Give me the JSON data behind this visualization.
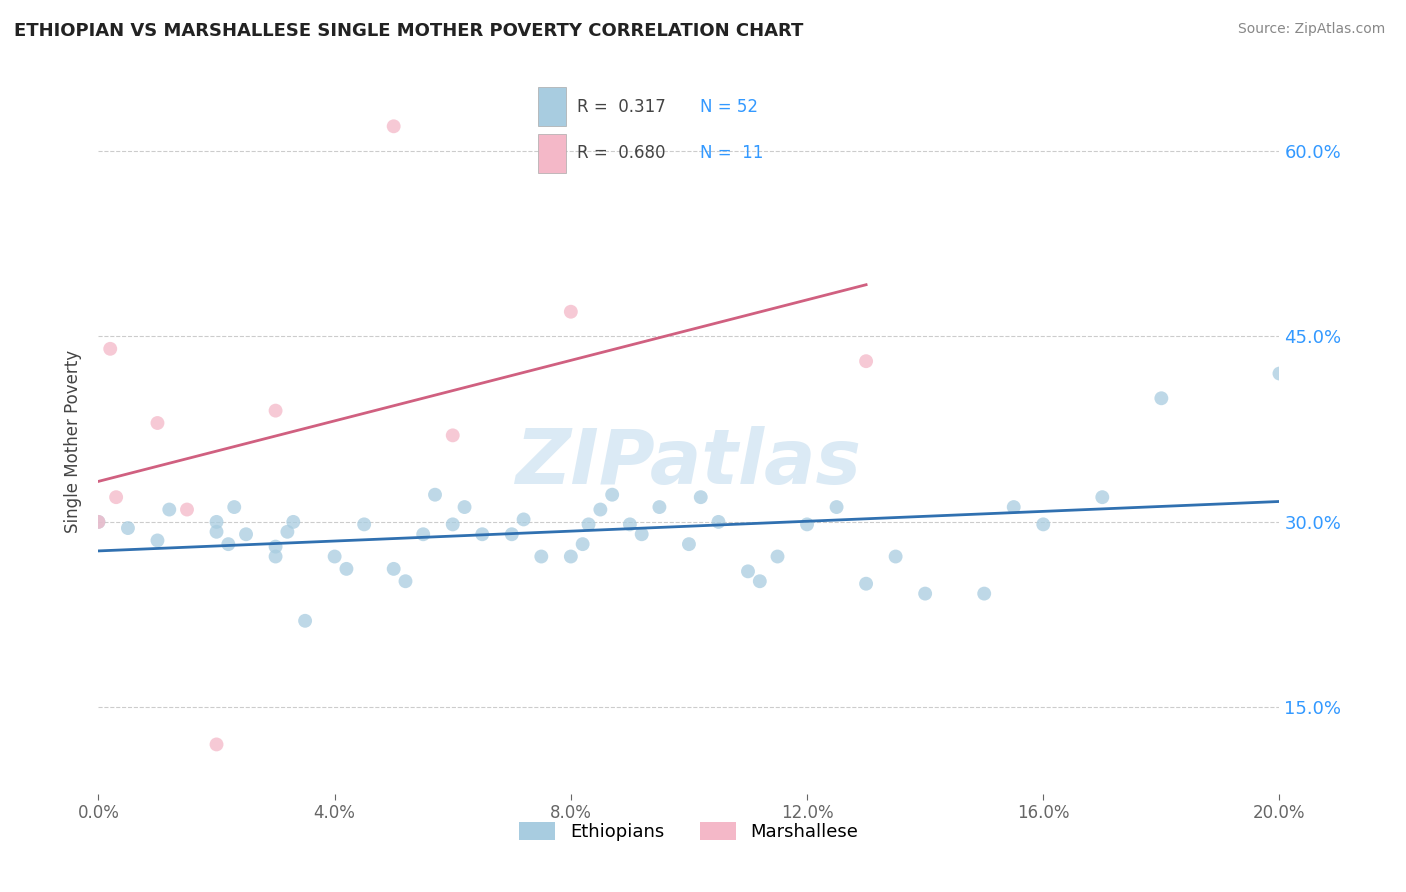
{
  "title": "ETHIOPIAN VS MARSHALLESE SINGLE MOTHER POVERTY CORRELATION CHART",
  "source": "Source: ZipAtlas.com",
  "ylabel": "Single Mother Poverty",
  "xlim": [
    0.0,
    0.2
  ],
  "ylim": [
    0.08,
    0.65
  ],
  "yticks": [
    0.15,
    0.3,
    0.45,
    0.6
  ],
  "xticks": [
    0.0,
    0.04,
    0.08,
    0.12,
    0.16,
    0.2
  ],
  "watermark": "ZIPatlas",
  "blue_r": 0.317,
  "blue_n": 52,
  "pink_r": 0.68,
  "pink_n": 11,
  "blue_color": "#a8cce0",
  "pink_color": "#f4b8c8",
  "blue_line_color": "#3070b0",
  "pink_line_color": "#d06080",
  "scatter_alpha": 0.75,
  "scatter_size": 100,
  "ethiopian_x": [
    0.0,
    0.005,
    0.01,
    0.012,
    0.02,
    0.02,
    0.022,
    0.023,
    0.025,
    0.03,
    0.03,
    0.032,
    0.033,
    0.035,
    0.04,
    0.042,
    0.045,
    0.05,
    0.052,
    0.055,
    0.057,
    0.06,
    0.062,
    0.065,
    0.07,
    0.072,
    0.075,
    0.08,
    0.082,
    0.083,
    0.085,
    0.087,
    0.09,
    0.092,
    0.095,
    0.1,
    0.102,
    0.105,
    0.11,
    0.112,
    0.115,
    0.12,
    0.125,
    0.13,
    0.135,
    0.14,
    0.15,
    0.155,
    0.16,
    0.17,
    0.18,
    0.2
  ],
  "ethiopian_y": [
    0.3,
    0.295,
    0.285,
    0.31,
    0.292,
    0.3,
    0.282,
    0.312,
    0.29,
    0.28,
    0.272,
    0.292,
    0.3,
    0.22,
    0.272,
    0.262,
    0.298,
    0.262,
    0.252,
    0.29,
    0.322,
    0.298,
    0.312,
    0.29,
    0.29,
    0.302,
    0.272,
    0.272,
    0.282,
    0.298,
    0.31,
    0.322,
    0.298,
    0.29,
    0.312,
    0.282,
    0.32,
    0.3,
    0.26,
    0.252,
    0.272,
    0.298,
    0.312,
    0.25,
    0.272,
    0.242,
    0.242,
    0.312,
    0.298,
    0.32,
    0.4,
    0.42
  ],
  "marshallese_x": [
    0.0,
    0.002,
    0.003,
    0.01,
    0.015,
    0.02,
    0.03,
    0.05,
    0.06,
    0.08,
    0.13
  ],
  "marshallese_y": [
    0.3,
    0.44,
    0.32,
    0.38,
    0.31,
    0.12,
    0.39,
    0.62,
    0.37,
    0.47,
    0.43
  ]
}
